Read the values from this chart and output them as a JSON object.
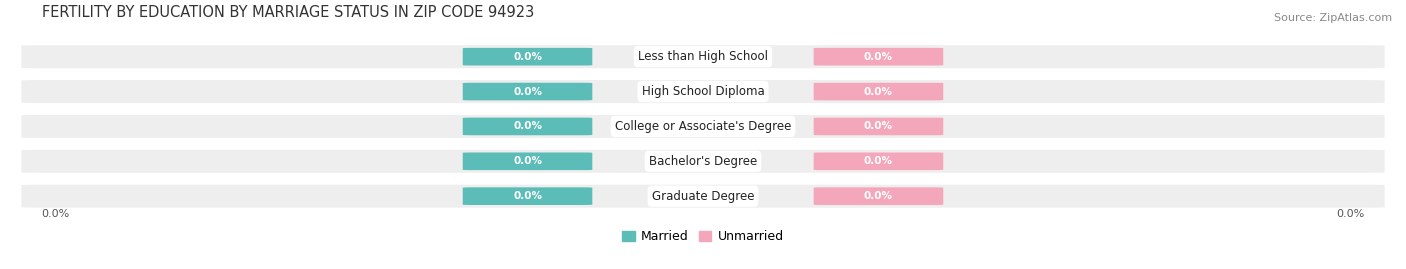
{
  "title": "FERTILITY BY EDUCATION BY MARRIAGE STATUS IN ZIP CODE 94923",
  "source": "Source: ZipAtlas.com",
  "categories": [
    "Less than High School",
    "High School Diploma",
    "College or Associate's Degree",
    "Bachelor's Degree",
    "Graduate Degree"
  ],
  "married_values": [
    0.0,
    0.0,
    0.0,
    0.0,
    0.0
  ],
  "unmarried_values": [
    0.0,
    0.0,
    0.0,
    0.0,
    0.0
  ],
  "married_color": "#5bbcb8",
  "unmarried_color": "#f4a7bb",
  "bar_bg_color": "#eeeeee",
  "title_fontsize": 10.5,
  "source_fontsize": 8,
  "label_fontsize": 8.5,
  "value_fontsize": 7.5,
  "tick_fontsize": 8,
  "legend_fontsize": 9,
  "bar_left_label": "0.0%",
  "bar_right_label": "0.0%"
}
